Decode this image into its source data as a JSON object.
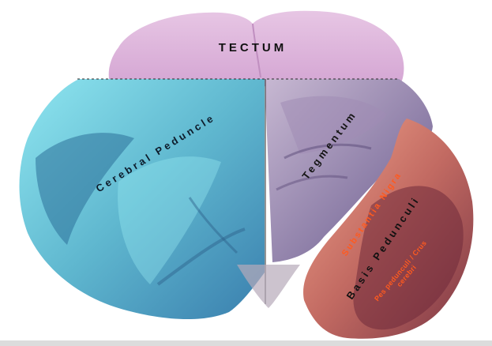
{
  "labels": {
    "tectum": "TECTUM",
    "cerebral_peduncle": "Cerebral Peduncle",
    "tegmentum": "Tegmentum",
    "substantia_nigra": "Substantia Nigra",
    "basis_pedunculi": "Basis Pedunculi",
    "pes_pedunculi": "Pes pedunculi / Crus cerebri"
  },
  "colors": {
    "tectum_tissue": "#d9a8d6",
    "cerebral_peduncle_overlay": "#35c7d8",
    "tegmentum_tissue": "#8a7aa6",
    "basis_overlay": "#e8826a",
    "crus_tissue": "#7a3640",
    "label_red": "#ff5a1f",
    "label_dark": "#111111"
  }
}
